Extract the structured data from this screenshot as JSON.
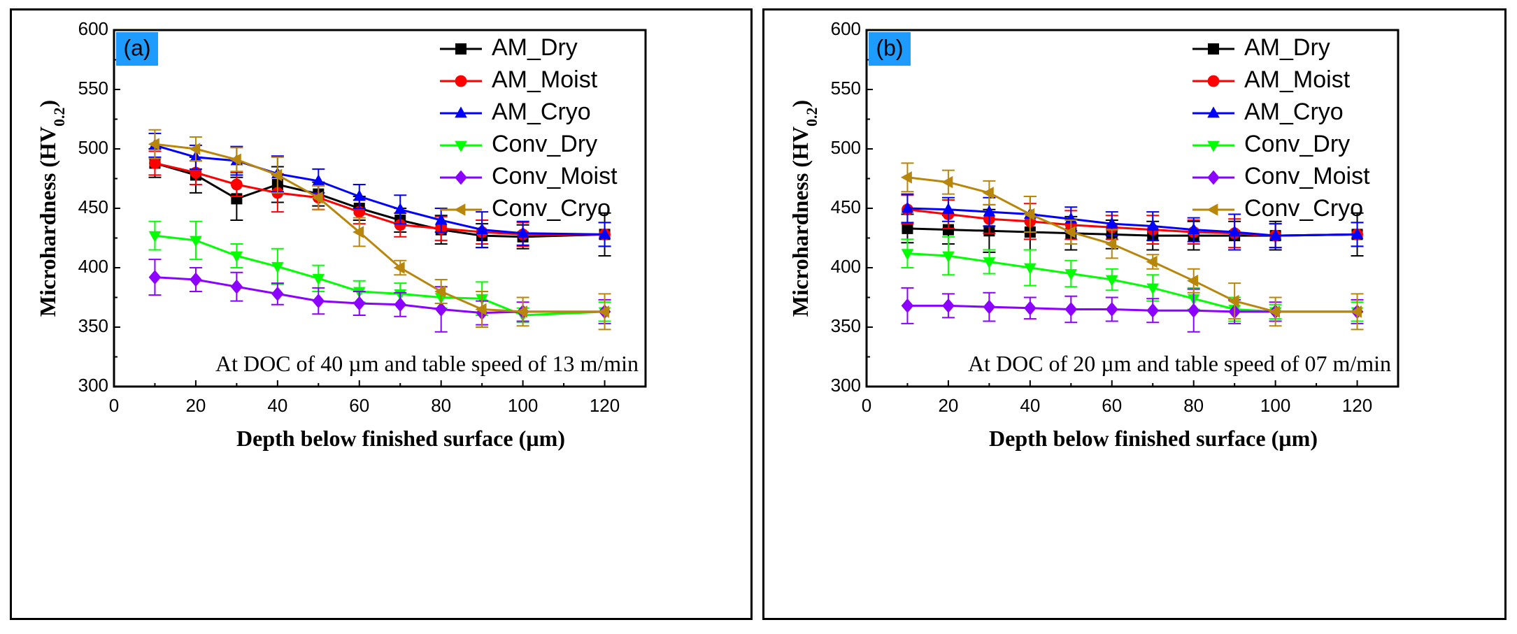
{
  "chart_data": [
    {
      "type": "line",
      "panel_label": "(a)",
      "xlabel": "Depth below finished surface (µm)",
      "ylabel_main": "Microhardness (HV",
      "ylabel_sub": "0.2",
      "ylabel_end": ")",
      "xlim": [
        0,
        130
      ],
      "ylim": [
        300,
        600
      ],
      "xticks": [
        0,
        20,
        40,
        60,
        80,
        100,
        120
      ],
      "yticks": [
        300,
        350,
        400,
        450,
        500,
        550,
        600
      ],
      "annotation": "At DOC of 40 µm and table speed of 13 m/min",
      "legend_position": "top-right",
      "series": [
        {
          "name": "AM_Dry",
          "color": "#000000",
          "marker": "square",
          "x": [
            10,
            20,
            30,
            40,
            50,
            60,
            70,
            80,
            90,
            100,
            120
          ],
          "y": [
            488,
            478,
            458,
            470,
            462,
            450,
            440,
            432,
            427,
            426,
            428
          ],
          "err": [
            12,
            15,
            18,
            15,
            10,
            10,
            10,
            12,
            10,
            10,
            18
          ]
        },
        {
          "name": "AM_Moist",
          "color": "#ff0000",
          "marker": "circle",
          "x": [
            10,
            20,
            30,
            40,
            50,
            60,
            70,
            80,
            90,
            100,
            120
          ],
          "y": [
            488,
            480,
            470,
            463,
            459,
            447,
            436,
            433,
            430,
            428,
            428
          ],
          "err": [
            10,
            10,
            10,
            16,
            10,
            10,
            10,
            10,
            10,
            10,
            10
          ]
        },
        {
          "name": "AM_Cryo",
          "color": "#0000ff",
          "marker": "triangle-up",
          "x": [
            10,
            20,
            30,
            40,
            50,
            60,
            70,
            80,
            90,
            100,
            120
          ],
          "y": [
            503,
            493,
            490,
            479,
            473,
            460,
            449,
            440,
            432,
            429,
            428
          ],
          "err": [
            10,
            10,
            12,
            15,
            10,
            10,
            12,
            10,
            15,
            10,
            10
          ]
        },
        {
          "name": "Conv_Dry",
          "color": "#00ff00",
          "marker": "triangle-down",
          "x": [
            10,
            20,
            30,
            40,
            50,
            60,
            70,
            80,
            90,
            100,
            120
          ],
          "y": [
            427,
            423,
            410,
            401,
            391,
            380,
            378,
            375,
            374,
            360,
            363
          ],
          "err": [
            12,
            16,
            10,
            15,
            11,
            9,
            9,
            9,
            14,
            6,
            8
          ]
        },
        {
          "name": "Conv_Moist",
          "color": "#8b00ff",
          "marker": "diamond",
          "x": [
            10,
            20,
            30,
            40,
            50,
            60,
            70,
            80,
            90,
            100,
            120
          ],
          "y": [
            392,
            390,
            384,
            378,
            372,
            370,
            369,
            365,
            362,
            363,
            363
          ],
          "err": [
            15,
            10,
            12,
            9,
            11,
            10,
            10,
            19,
            10,
            8,
            10
          ]
        },
        {
          "name": "Conv_Cryo",
          "color": "#b8860b",
          "marker": "triangle-left",
          "x": [
            10,
            20,
            30,
            40,
            50,
            60,
            70,
            80,
            90,
            100,
            120
          ],
          "y": [
            504,
            500,
            491,
            478,
            459,
            430,
            400,
            380,
            365,
            363,
            363
          ],
          "err": [
            12,
            10,
            10,
            15,
            10,
            12,
            6,
            10,
            15,
            12,
            15
          ]
        }
      ]
    },
    {
      "type": "line",
      "panel_label": "(b)",
      "xlabel": "Depth below finished surface (µm)",
      "ylabel_main": "Microhardness (HV",
      "ylabel_sub": "0.2",
      "ylabel_end": ")",
      "xlim": [
        0,
        130
      ],
      "ylim": [
        300,
        600
      ],
      "xticks": [
        0,
        20,
        40,
        60,
        80,
        100,
        120
      ],
      "yticks": [
        300,
        350,
        400,
        450,
        500,
        550,
        600
      ],
      "annotation": "At DOC of 20 µm and table speed of 07 m/min",
      "legend_position": "top-right",
      "series": [
        {
          "name": "AM_Dry",
          "color": "#000000",
          "marker": "square",
          "x": [
            10,
            20,
            30,
            40,
            50,
            60,
            70,
            80,
            90,
            100,
            120
          ],
          "y": [
            433,
            432,
            431,
            430,
            429,
            428,
            427,
            427,
            427,
            427,
            428
          ],
          "err": [
            12,
            12,
            18,
            15,
            14,
            12,
            12,
            12,
            12,
            12,
            18
          ]
        },
        {
          "name": "AM_Moist",
          "color": "#ff0000",
          "marker": "circle",
          "x": [
            10,
            20,
            30,
            40,
            50,
            60,
            70,
            80,
            90,
            100,
            120
          ],
          "y": [
            449,
            445,
            441,
            439,
            436,
            434,
            432,
            430,
            429,
            427,
            428
          ],
          "err": [
            12,
            12,
            12,
            15,
            12,
            10,
            12,
            10,
            12,
            10,
            10
          ]
        },
        {
          "name": "AM_Cryo",
          "color": "#0000ff",
          "marker": "triangle-up",
          "x": [
            10,
            20,
            30,
            40,
            50,
            60,
            70,
            80,
            90,
            100,
            120
          ],
          "y": [
            450,
            449,
            447,
            445,
            441,
            437,
            435,
            432,
            430,
            427,
            428
          ],
          "err": [
            12,
            10,
            12,
            15,
            10,
            10,
            12,
            10,
            15,
            10,
            10
          ]
        },
        {
          "name": "Conv_Dry",
          "color": "#00ff00",
          "marker": "triangle-down",
          "x": [
            10,
            20,
            30,
            40,
            50,
            60,
            70,
            80,
            90,
            100,
            120
          ],
          "y": [
            412,
            410,
            405,
            400,
            395,
            390,
            383,
            374,
            365,
            363,
            363
          ],
          "err": [
            12,
            16,
            10,
            15,
            11,
            9,
            11,
            9,
            10,
            6,
            8
          ]
        },
        {
          "name": "Conv_Moist",
          "color": "#8b00ff",
          "marker": "diamond",
          "x": [
            10,
            20,
            30,
            40,
            50,
            60,
            70,
            80,
            90,
            100,
            120
          ],
          "y": [
            368,
            368,
            367,
            366,
            365,
            365,
            364,
            364,
            363,
            363,
            363
          ],
          "err": [
            15,
            10,
            12,
            9,
            11,
            10,
            10,
            18,
            10,
            8,
            10
          ]
        },
        {
          "name": "Conv_Cryo",
          "color": "#b8860b",
          "marker": "triangle-left",
          "x": [
            10,
            20,
            30,
            40,
            50,
            60,
            70,
            80,
            90,
            100,
            120
          ],
          "y": [
            476,
            472,
            463,
            445,
            430,
            420,
            405,
            389,
            372,
            363,
            363
          ],
          "err": [
            12,
            10,
            10,
            15,
            10,
            12,
            6,
            10,
            15,
            12,
            15
          ]
        }
      ]
    }
  ]
}
